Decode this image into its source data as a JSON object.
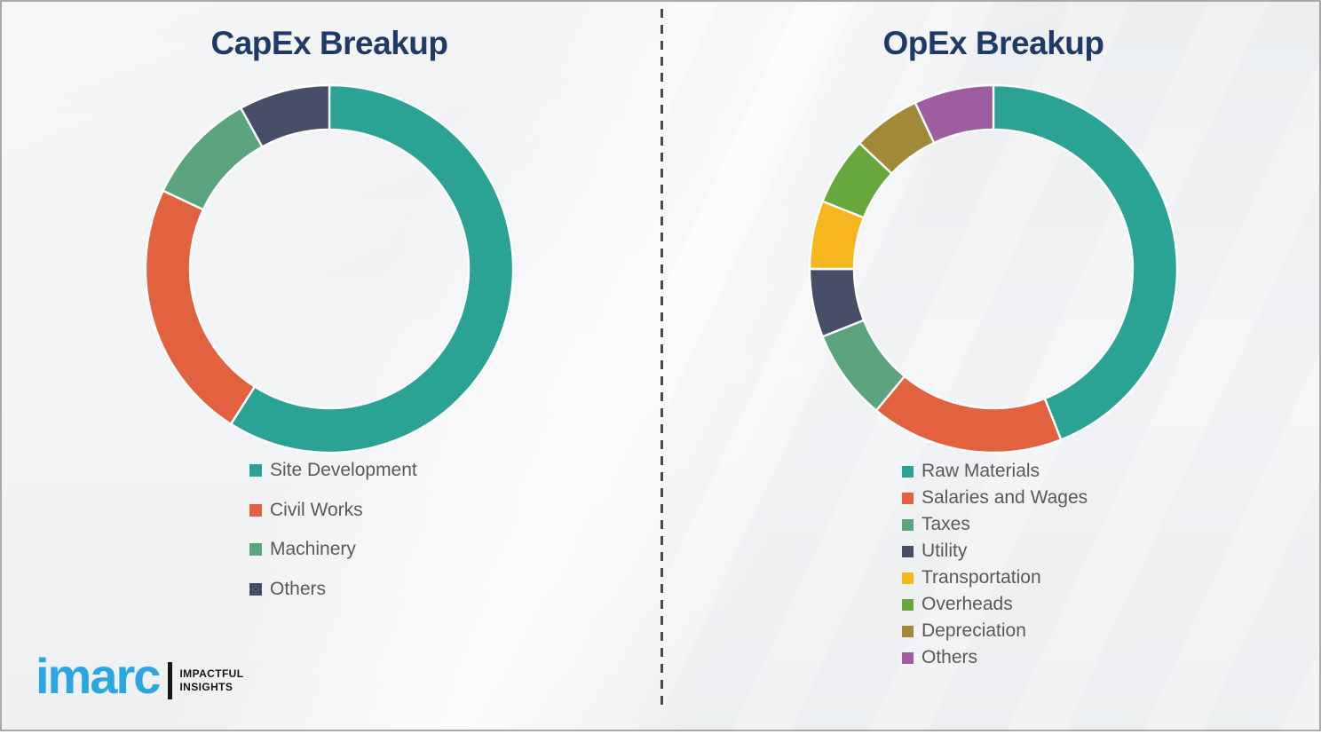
{
  "chart_data": [
    {
      "type": "pie",
      "subtype": "donut",
      "title": "CapEx Breakup",
      "labels": [
        "Site Development",
        "Civil Works",
        "Machinery",
        "Others"
      ],
      "values": [
        59,
        23,
        10,
        8
      ],
      "unit": "percent",
      "colors": [
        "#2AA394",
        "#E2613E",
        "#5CA47D",
        "#474E68"
      ],
      "start_angle_deg": 0,
      "direction": "clockwise",
      "legend_position": "below-left",
      "data_labels_shown": false
    },
    {
      "type": "pie",
      "subtype": "donut",
      "title": "OpEx Breakup",
      "labels": [
        "Raw Materials",
        "Salaries and Wages",
        "Taxes",
        "Utility",
        "Transportation",
        "Overheads",
        "Depreciation",
        "Others"
      ],
      "values": [
        44,
        17,
        8,
        6,
        6,
        6,
        6,
        7
      ],
      "unit": "percent",
      "colors": [
        "#2AA394",
        "#E2613E",
        "#5CA47D",
        "#474E68",
        "#F6B71E",
        "#67A83C",
        "#A28938",
        "#9E5DA1"
      ],
      "start_angle_deg": 0,
      "direction": "clockwise",
      "legend_position": "below-left",
      "data_labels_shown": false
    }
  ],
  "logo": {
    "wordmark": "imarc",
    "tagline_line1": "IMPACTFUL",
    "tagline_line2": "INSIGHTS",
    "wordmark_color": "#2AA7E0"
  },
  "style": {
    "title_color": "#203A68",
    "legend_text_color": "#595959",
    "divider_color": "#4a4a4a",
    "segment_gap_color": "#FFFFFF"
  }
}
